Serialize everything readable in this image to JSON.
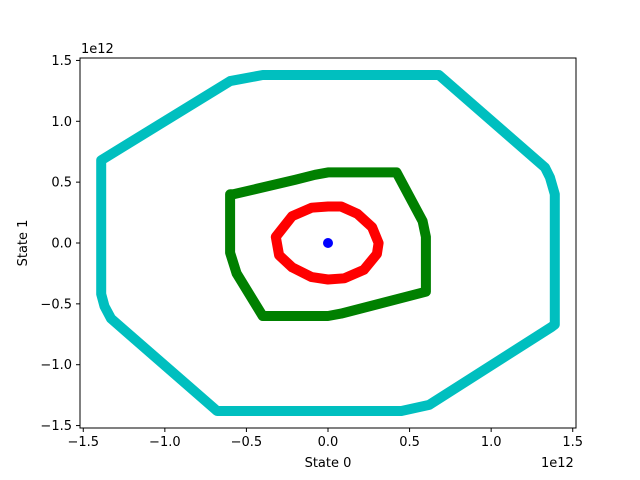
{
  "chart_data": {
    "type": "line",
    "xlabel": "State 0",
    "ylabel": "State 1",
    "x_offset_label": "1e12",
    "y_offset_label": "1e12",
    "xlim": [
      -1.52,
      1.52
    ],
    "ylim": [
      -1.52,
      1.52
    ],
    "xticks": [
      -1.5,
      -1.0,
      -0.5,
      0.0,
      0.5,
      1.0,
      1.5
    ],
    "xtick_labels": [
      "−1.5",
      "−1.0",
      "−0.5",
      "0.0",
      "0.5",
      "1.0",
      "1.5"
    ],
    "yticks": [
      -1.5,
      -1.0,
      -0.5,
      0.0,
      0.5,
      1.0,
      1.5
    ],
    "ytick_labels": [
      "−1.5",
      "−1.0",
      "−0.5",
      "0.0",
      "0.5",
      "1.0",
      "1.5"
    ],
    "grid": false,
    "series": [
      {
        "color": "#00bfbf",
        "closed": true,
        "x": [
          -0.6,
          -0.4,
          0.68,
          1.33,
          1.36,
          1.39,
          1.39,
          1.37,
          0.62,
          0.45,
          -0.68,
          -1.33,
          -1.37,
          -1.39,
          -1.39,
          -0.6
        ],
        "y": [
          1.33,
          1.38,
          1.38,
          0.62,
          0.54,
          0.4,
          -0.67,
          -0.69,
          -1.33,
          -1.38,
          -1.38,
          -0.62,
          -0.52,
          -0.42,
          0.68,
          1.33
        ]
      },
      {
        "color": "#008000",
        "closed": true,
        "x": [
          -0.58,
          -0.2,
          -0.08,
          0.0,
          0.42,
          0.58,
          0.6,
          0.6,
          0.08,
          0.0,
          -0.4,
          -0.56,
          -0.6,
          -0.6
        ],
        "y": [
          0.4,
          0.52,
          0.56,
          0.58,
          0.58,
          0.18,
          0.05,
          -0.4,
          -0.58,
          -0.6,
          -0.6,
          -0.25,
          -0.08,
          0.4
        ]
      },
      {
        "color": "#ff0000",
        "closed": true,
        "x": [
          -0.32,
          -0.22,
          -0.1,
          0.0,
          0.08,
          0.18,
          0.27,
          0.31,
          0.3,
          0.22,
          0.1,
          0.0,
          -0.1,
          -0.22,
          -0.3,
          -0.32
        ],
        "y": [
          0.05,
          0.22,
          0.29,
          0.3,
          0.3,
          0.24,
          0.13,
          0.0,
          -0.09,
          -0.22,
          -0.29,
          -0.3,
          -0.28,
          -0.2,
          -0.1,
          0.05
        ]
      },
      {
        "color": "#0000ff",
        "closed": false,
        "marker": true,
        "x": [
          0.0
        ],
        "y": [
          0.0
        ]
      }
    ]
  }
}
